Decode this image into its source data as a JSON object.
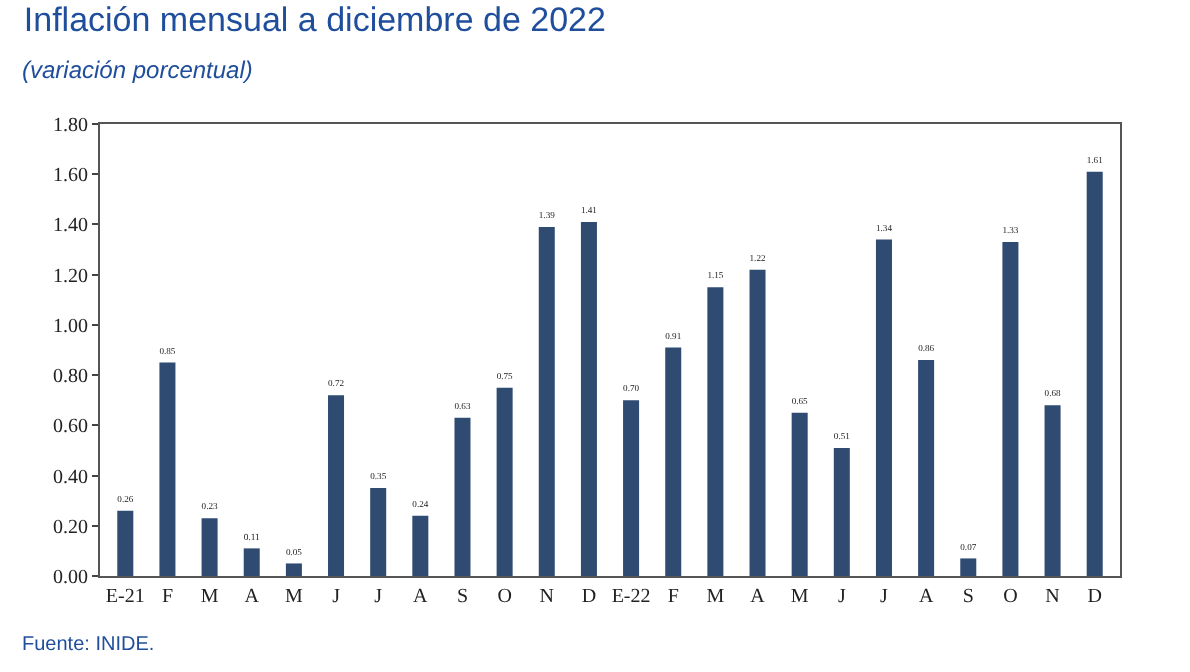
{
  "chart_data": {
    "type": "bar",
    "title": "Inflación mensual a diciembre de 2022",
    "subtitle": "(variación porcentual)",
    "categories": [
      "E-21",
      "F",
      "M",
      "A",
      "M",
      "J",
      "J",
      "A",
      "S",
      "O",
      "N",
      "D",
      "E-22",
      "F",
      "M",
      "A",
      "M",
      "J",
      "J",
      "A",
      "S",
      "O",
      "N",
      "D"
    ],
    "values": [
      0.26,
      0.85,
      0.23,
      0.11,
      0.05,
      0.72,
      0.35,
      0.24,
      0.63,
      0.75,
      1.39,
      1.41,
      0.7,
      0.91,
      1.15,
      1.22,
      0.65,
      0.51,
      1.34,
      0.86,
      0.07,
      1.33,
      0.68,
      1.61
    ],
    "value_labels": [
      "0.26",
      "0.85",
      "0.23",
      "0.11",
      "0.05",
      "0.72",
      "0.35",
      "0.24",
      "0.63",
      "0.75",
      "1.39",
      "1.41",
      "0.70",
      "0.91",
      "1.15",
      "1.22",
      "0.65",
      "0.51",
      "1.34",
      "0.86",
      "0.07",
      "1.33",
      "0.68",
      "1.61"
    ],
    "color": "#2f4b72",
    "ylim": [
      0,
      1.8
    ],
    "yticks": [
      {
        "value": 0,
        "label": "0.00"
      },
      {
        "value": 0.2,
        "label": "0.20"
      },
      {
        "value": 0.4,
        "label": "0.40"
      },
      {
        "value": 0.6,
        "label": "0.60"
      },
      {
        "value": 0.8,
        "label": "0.80"
      },
      {
        "value": 1.0,
        "label": "1.00"
      },
      {
        "value": 1.2,
        "label": "1.20"
      },
      {
        "value": 1.4,
        "label": "1.40"
      },
      {
        "value": 1.6,
        "label": "1.60"
      },
      {
        "value": 1.8,
        "label": "1.80"
      }
    ],
    "grid": false,
    "legend": false,
    "annotations": [
      "Fuente: INIDE."
    ]
  }
}
